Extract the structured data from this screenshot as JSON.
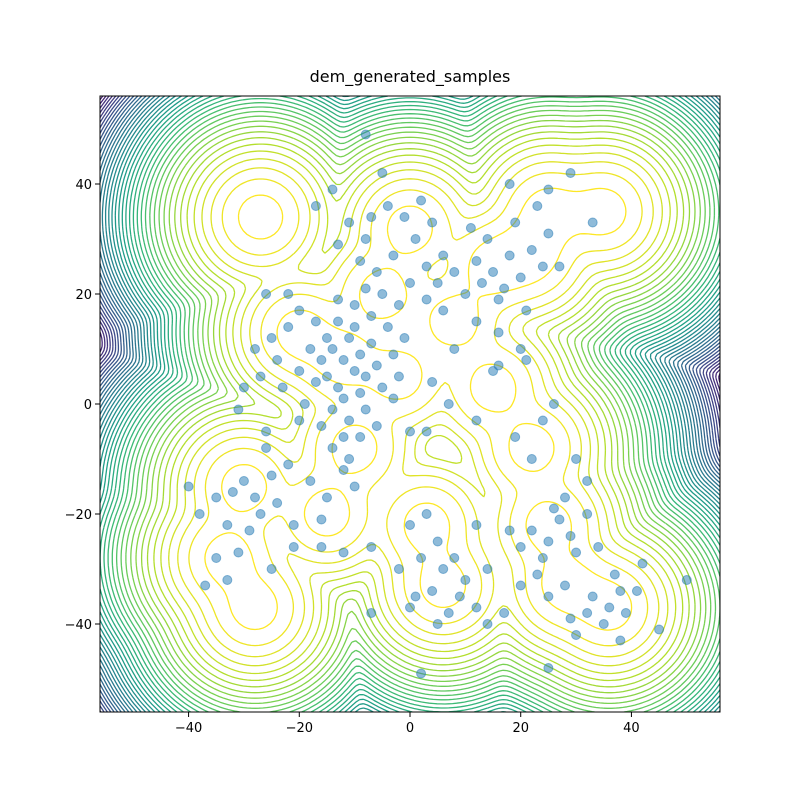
{
  "chart_data": {
    "type": "scatter",
    "title": "dem_generated_samples",
    "xlim": [
      -56,
      56
    ],
    "ylim": [
      -56,
      56
    ],
    "xticks": [
      {
        "value": -40,
        "label": "−40"
      },
      {
        "value": -20,
        "label": "−20"
      },
      0,
      20,
      40
    ],
    "yticks": [
      {
        "value": -40,
        "label": "−40"
      },
      {
        "value": -20,
        "label": "−20"
      },
      0,
      20,
      40
    ],
    "color": "#1f77b4",
    "alpha": 0.5,
    "x": [
      -14,
      -12,
      -10,
      -15,
      -11,
      -9,
      -13,
      -16,
      -8,
      -12,
      -10,
      -14,
      -7,
      -17,
      -11,
      -6,
      -13,
      -9,
      -15,
      -8,
      -16,
      -12,
      -5,
      -18,
      -10,
      -7,
      -3,
      -4,
      -19,
      -6,
      -20,
      -14,
      -9,
      -2,
      -11,
      -13,
      -17,
      -1,
      -3,
      -8,
      -5,
      -2,
      -6,
      0,
      3,
      -3,
      1,
      -1,
      4,
      -8,
      -4,
      2,
      6,
      5,
      -7,
      -11,
      -13,
      -9,
      8,
      3,
      -17,
      -14,
      -5,
      -8,
      12,
      15,
      18,
      20,
      17,
      14,
      22,
      24,
      19,
      11,
      16,
      21,
      25,
      23,
      27,
      13,
      10,
      18,
      25,
      29,
      33,
      12,
      16,
      20,
      8,
      15,
      21,
      6,
      -22,
      -25,
      -20,
      -24,
      -27,
      -22,
      -26,
      -28,
      -30,
      -23,
      -31,
      -26,
      -20,
      4,
      7,
      3,
      0,
      16,
      19,
      22,
      24,
      26,
      12,
      -30,
      -28,
      -32,
      -25,
      -27,
      -33,
      -29,
      -24,
      -22,
      -35,
      -38,
      -40,
      -26,
      -21,
      -31,
      -35,
      -37,
      -33,
      -25,
      -18,
      -15,
      -12,
      -10,
      -16,
      -21,
      0,
      3,
      5,
      2,
      6,
      4,
      8,
      9,
      1,
      7,
      10,
      12,
      -2,
      0,
      5,
      12,
      14,
      -7,
      -7,
      -16,
      -12,
      2,
      14,
      17,
      22,
      25,
      27,
      24,
      29,
      20,
      26,
      30,
      23,
      28,
      32,
      18,
      34,
      32,
      30,
      20,
      25,
      28,
      33,
      36,
      38,
      35,
      39,
      32,
      37,
      41,
      42,
      45,
      50,
      30,
      38,
      29,
      25
    ],
    "y": [
      10,
      8,
      6,
      5,
      12,
      9,
      3,
      8,
      5,
      1,
      14,
      -1,
      11,
      4,
      -3,
      7,
      15,
      2,
      12,
      -1,
      -4,
      -6,
      3,
      10,
      18,
      16,
      9,
      14,
      0,
      -4,
      6,
      -8,
      -6,
      5,
      -10,
      19,
      15,
      12,
      1,
      21,
      20,
      18,
      24,
      22,
      19,
      27,
      30,
      34,
      33,
      30,
      36,
      37,
      27,
      22,
      34,
      33,
      29,
      26,
      24,
      25,
      36,
      39,
      42,
      49,
      26,
      24,
      27,
      23,
      21,
      30,
      28,
      25,
      33,
      32,
      19,
      17,
      31,
      36,
      25,
      22,
      20,
      40,
      39,
      42,
      33,
      15,
      13,
      10,
      10,
      6,
      8,
      17,
      14,
      12,
      17,
      8,
      5,
      20,
      20,
      10,
      3,
      3,
      -1,
      -5,
      -3,
      4,
      0,
      -5,
      -5,
      7,
      -6,
      -10,
      -3,
      0,
      -3,
      -14,
      -17,
      -16,
      -13,
      -20,
      -22,
      -23,
      -18,
      -11,
      -17,
      -20,
      -15,
      -8,
      -26,
      -27,
      -28,
      -33,
      -32,
      -30,
      -14,
      -17,
      -12,
      -15,
      -21,
      -22,
      -22,
      -20,
      -25,
      -28,
      -30,
      -34,
      -28,
      -35,
      -35,
      -38,
      -32,
      -22,
      -30,
      -37,
      -40,
      -37,
      -30,
      -38,
      -26,
      -26,
      -27,
      -49,
      -40,
      -38,
      -23,
      -25,
      -21,
      -28,
      -24,
      -26,
      -19,
      -27,
      -31,
      -17,
      -20,
      -23,
      -26,
      -14,
      -10,
      -33,
      -35,
      -33,
      -35,
      -37,
      -34,
      -40,
      -38,
      -38,
      -31,
      -34,
      -29,
      -41,
      -32,
      -42,
      -43,
      -39,
      -48
    ],
    "contour": {
      "centers_x": [
        -12,
        -5,
        0,
        15,
        22,
        35,
        -27,
        -20,
        15,
        22,
        -30,
        -28,
        3,
        6,
        25,
        36,
        -10,
        28,
        -2,
        8,
        25,
        -33,
        -15
      ],
      "centers_y": [
        8,
        20,
        32,
        25,
        27,
        35,
        34,
        13,
        3,
        -8,
        -15,
        -37,
        -22,
        -33,
        -22,
        -37,
        -8,
        -33,
        5,
        15,
        35,
        -28,
        -20
      ],
      "sigma": 4,
      "levels": [
        0.5,
        1.5,
        2.5,
        3.5,
        4.5,
        5.5,
        6.5,
        7.5,
        8.5,
        9.5,
        10.5,
        11.5,
        12.5,
        13.5,
        14.5,
        15.5,
        16.5,
        17.5,
        18.5,
        19.5,
        20.5,
        21.5,
        22.5,
        23.5,
        24.5,
        25.5,
        26.5,
        27.5,
        28.5,
        29.5,
        30.5,
        31.5,
        32.5,
        33.5,
        34.5,
        35.5,
        36.5,
        37.5,
        38.5,
        39.5,
        40.5,
        41.5,
        42.5,
        43.5,
        44.5
      ],
      "colormap": [
        "#fde725",
        "#b5de2b",
        "#6ece58",
        "#35b779",
        "#1f9e89",
        "#26828e",
        "#31688e",
        "#3e4989",
        "#482878",
        "#440154"
      ]
    }
  }
}
